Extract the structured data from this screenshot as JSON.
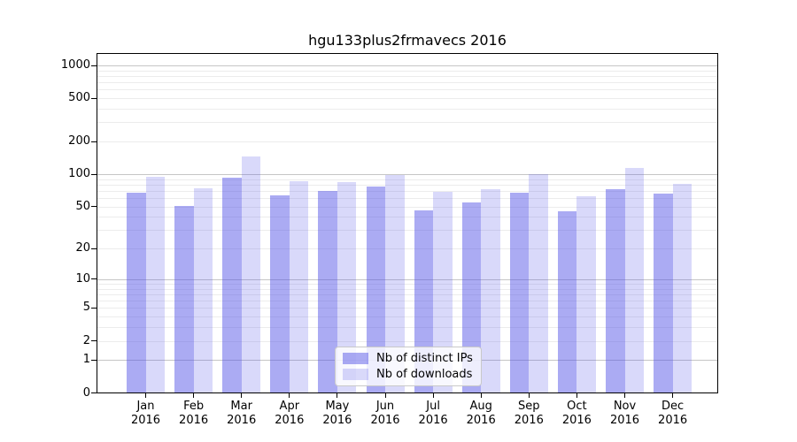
{
  "title": "hgu133plus2frmavecs 2016",
  "chart_data": {
    "type": "bar",
    "title": "hgu133plus2frmavecs 2016",
    "categories": [
      "Jan",
      "Feb",
      "Mar",
      "Apr",
      "May",
      "Jun",
      "Jul",
      "Aug",
      "Sep",
      "Oct",
      "Nov",
      "Dec"
    ],
    "year": "2016",
    "series": [
      {
        "name": "Nb of distinct IPs",
        "values": [
          67,
          51,
          92,
          64,
          70,
          77,
          46,
          55,
          67,
          45,
          72,
          66
        ]
      },
      {
        "name": "Nb of downloads",
        "values": [
          94,
          74,
          146,
          86,
          84,
          98,
          68,
          72,
          101,
          63,
          114,
          82
        ]
      }
    ],
    "xlabel": "",
    "ylabel": "",
    "yscale": "log1p",
    "yticks": [
      1000,
      500,
      200,
      100,
      50,
      20,
      10,
      5,
      2,
      1,
      0
    ],
    "ylim": [
      0,
      1290
    ],
    "grid": "horizontal major and minor gridlines",
    "legend_position": "inside bottom-center"
  },
  "colors": {
    "series_fill": [
      "rgba(80,80,230,0.48)",
      "rgba(80,80,230,0.22)"
    ],
    "series_hex_approx": [
      "#a9a9f2",
      "#d9d9f8"
    ],
    "grid_major": "#c6c6c6",
    "grid_minor": "#ececec",
    "axis": "#000000",
    "legend_border": "#c9c9c9",
    "background": "#ffffff"
  }
}
